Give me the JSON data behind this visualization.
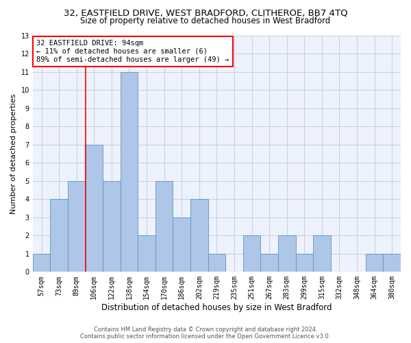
{
  "title": "32, EASTFIELD DRIVE, WEST BRADFORD, CLITHEROE, BB7 4TQ",
  "subtitle": "Size of property relative to detached houses in West Bradford",
  "xlabel": "Distribution of detached houses by size in West Bradford",
  "ylabel": "Number of detached properties",
  "footer_line1": "Contains HM Land Registry data © Crown copyright and database right 2024.",
  "footer_line2": "Contains public sector information licensed under the Open Government Licence v3.0.",
  "categories": [
    "57sqm",
    "73sqm",
    "89sqm",
    "106sqm",
    "122sqm",
    "138sqm",
    "154sqm",
    "170sqm",
    "186sqm",
    "202sqm",
    "219sqm",
    "235sqm",
    "251sqm",
    "267sqm",
    "283sqm",
    "299sqm",
    "315sqm",
    "332sqm",
    "348sqm",
    "364sqm",
    "380sqm"
  ],
  "values": [
    1,
    4,
    5,
    7,
    5,
    11,
    2,
    5,
    3,
    4,
    1,
    0,
    2,
    1,
    2,
    1,
    2,
    0,
    0,
    1,
    1
  ],
  "bar_color": "#aec6e8",
  "bar_edge_color": "#5a96c8",
  "red_line_index": 2,
  "annotation_text": "32 EASTFIELD DRIVE: 94sqm\n← 11% of detached houses are smaller (6)\n89% of semi-detached houses are larger (49) →",
  "annotation_box_color": "white",
  "annotation_box_edge_color": "red",
  "ylim": [
    0,
    13
  ],
  "yticks": [
    0,
    1,
    2,
    3,
    4,
    5,
    6,
    7,
    8,
    9,
    10,
    11,
    12,
    13
  ],
  "bg_color": "#eef2fc",
  "grid_color": "#c8d0e8",
  "title_fontsize": 9.5,
  "subtitle_fontsize": 8.5,
  "xlabel_fontsize": 8.5,
  "ylabel_fontsize": 8,
  "tick_fontsize": 7,
  "annotation_fontsize": 7.5,
  "footer_fontsize": 6
}
